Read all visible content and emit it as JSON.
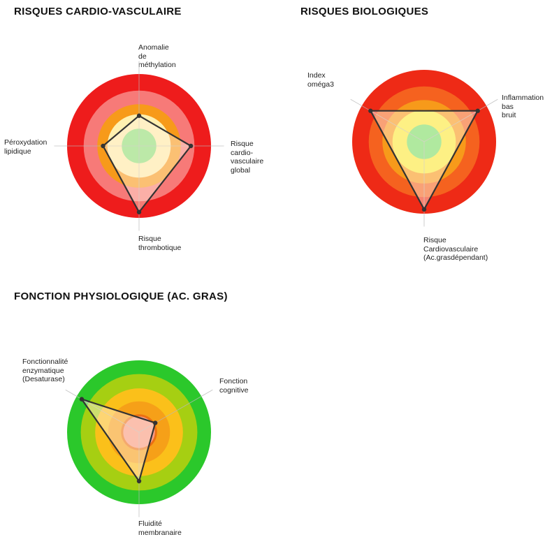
{
  "chart_data": [
    {
      "type": "radar",
      "title": "RISQUES CARDIO-VASCULAIRE",
      "scale_levels": 5,
      "ring_colors": [
        "#ee1c1c",
        "#f77a78",
        "#f79a1a",
        "#fff0b0",
        "#85e37a"
      ],
      "axes": [
        {
          "label_lines": [
            "Anomalie",
            "de",
            "méthylation"
          ],
          "value": 0.42
        },
        {
          "label_lines": [
            "Risque",
            "cardio-",
            "vasculaire",
            "global"
          ],
          "value": 0.72
        },
        {
          "label_lines": [
            "Risque",
            "thrombotique"
          ],
          "value": 0.92
        },
        {
          "label_lines": [
            "Péroxydation",
            "lipidique"
          ],
          "value": 0.5
        }
      ]
    },
    {
      "type": "radar",
      "title": "RISQUES BIOLOGIQUES",
      "scale_levels": 5,
      "ring_colors": [
        "#ee2a16",
        "#f5621f",
        "#f79a1a",
        "#fbf03a",
        "#6fe36b"
      ],
      "axes": [
        {
          "label_lines": [
            "Inflammation",
            "bas",
            "bruit"
          ],
          "value": 0.86
        },
        {
          "label_lines": [
            "Risque",
            "Cardiovasculaire",
            "(Ac.grasdépendant)"
          ],
          "value": 0.94
        },
        {
          "label_lines": [
            "Index",
            "oméga3"
          ],
          "value": 0.86
        }
      ]
    },
    {
      "type": "radar",
      "title": "FONCTION PHYSIOLOGIQUE (AC. GRAS)",
      "scale_levels": 5,
      "ring_colors": [
        "#2bc82b",
        "#a6cf12",
        "#fbc01a",
        "#f6a018",
        "#ec7012"
      ],
      "center_color": "#f79a86",
      "axes": [
        {
          "label_lines": [
            "Fonction",
            "cognitive"
          ],
          "value": 0.26
        },
        {
          "label_lines": [
            "Fluidité",
            "membranaire"
          ],
          "value": 0.68
        },
        {
          "label_lines": [
            "Fonctionnalité",
            "enzymatique",
            "(Desaturase)"
          ],
          "value": 0.92
        }
      ]
    }
  ]
}
